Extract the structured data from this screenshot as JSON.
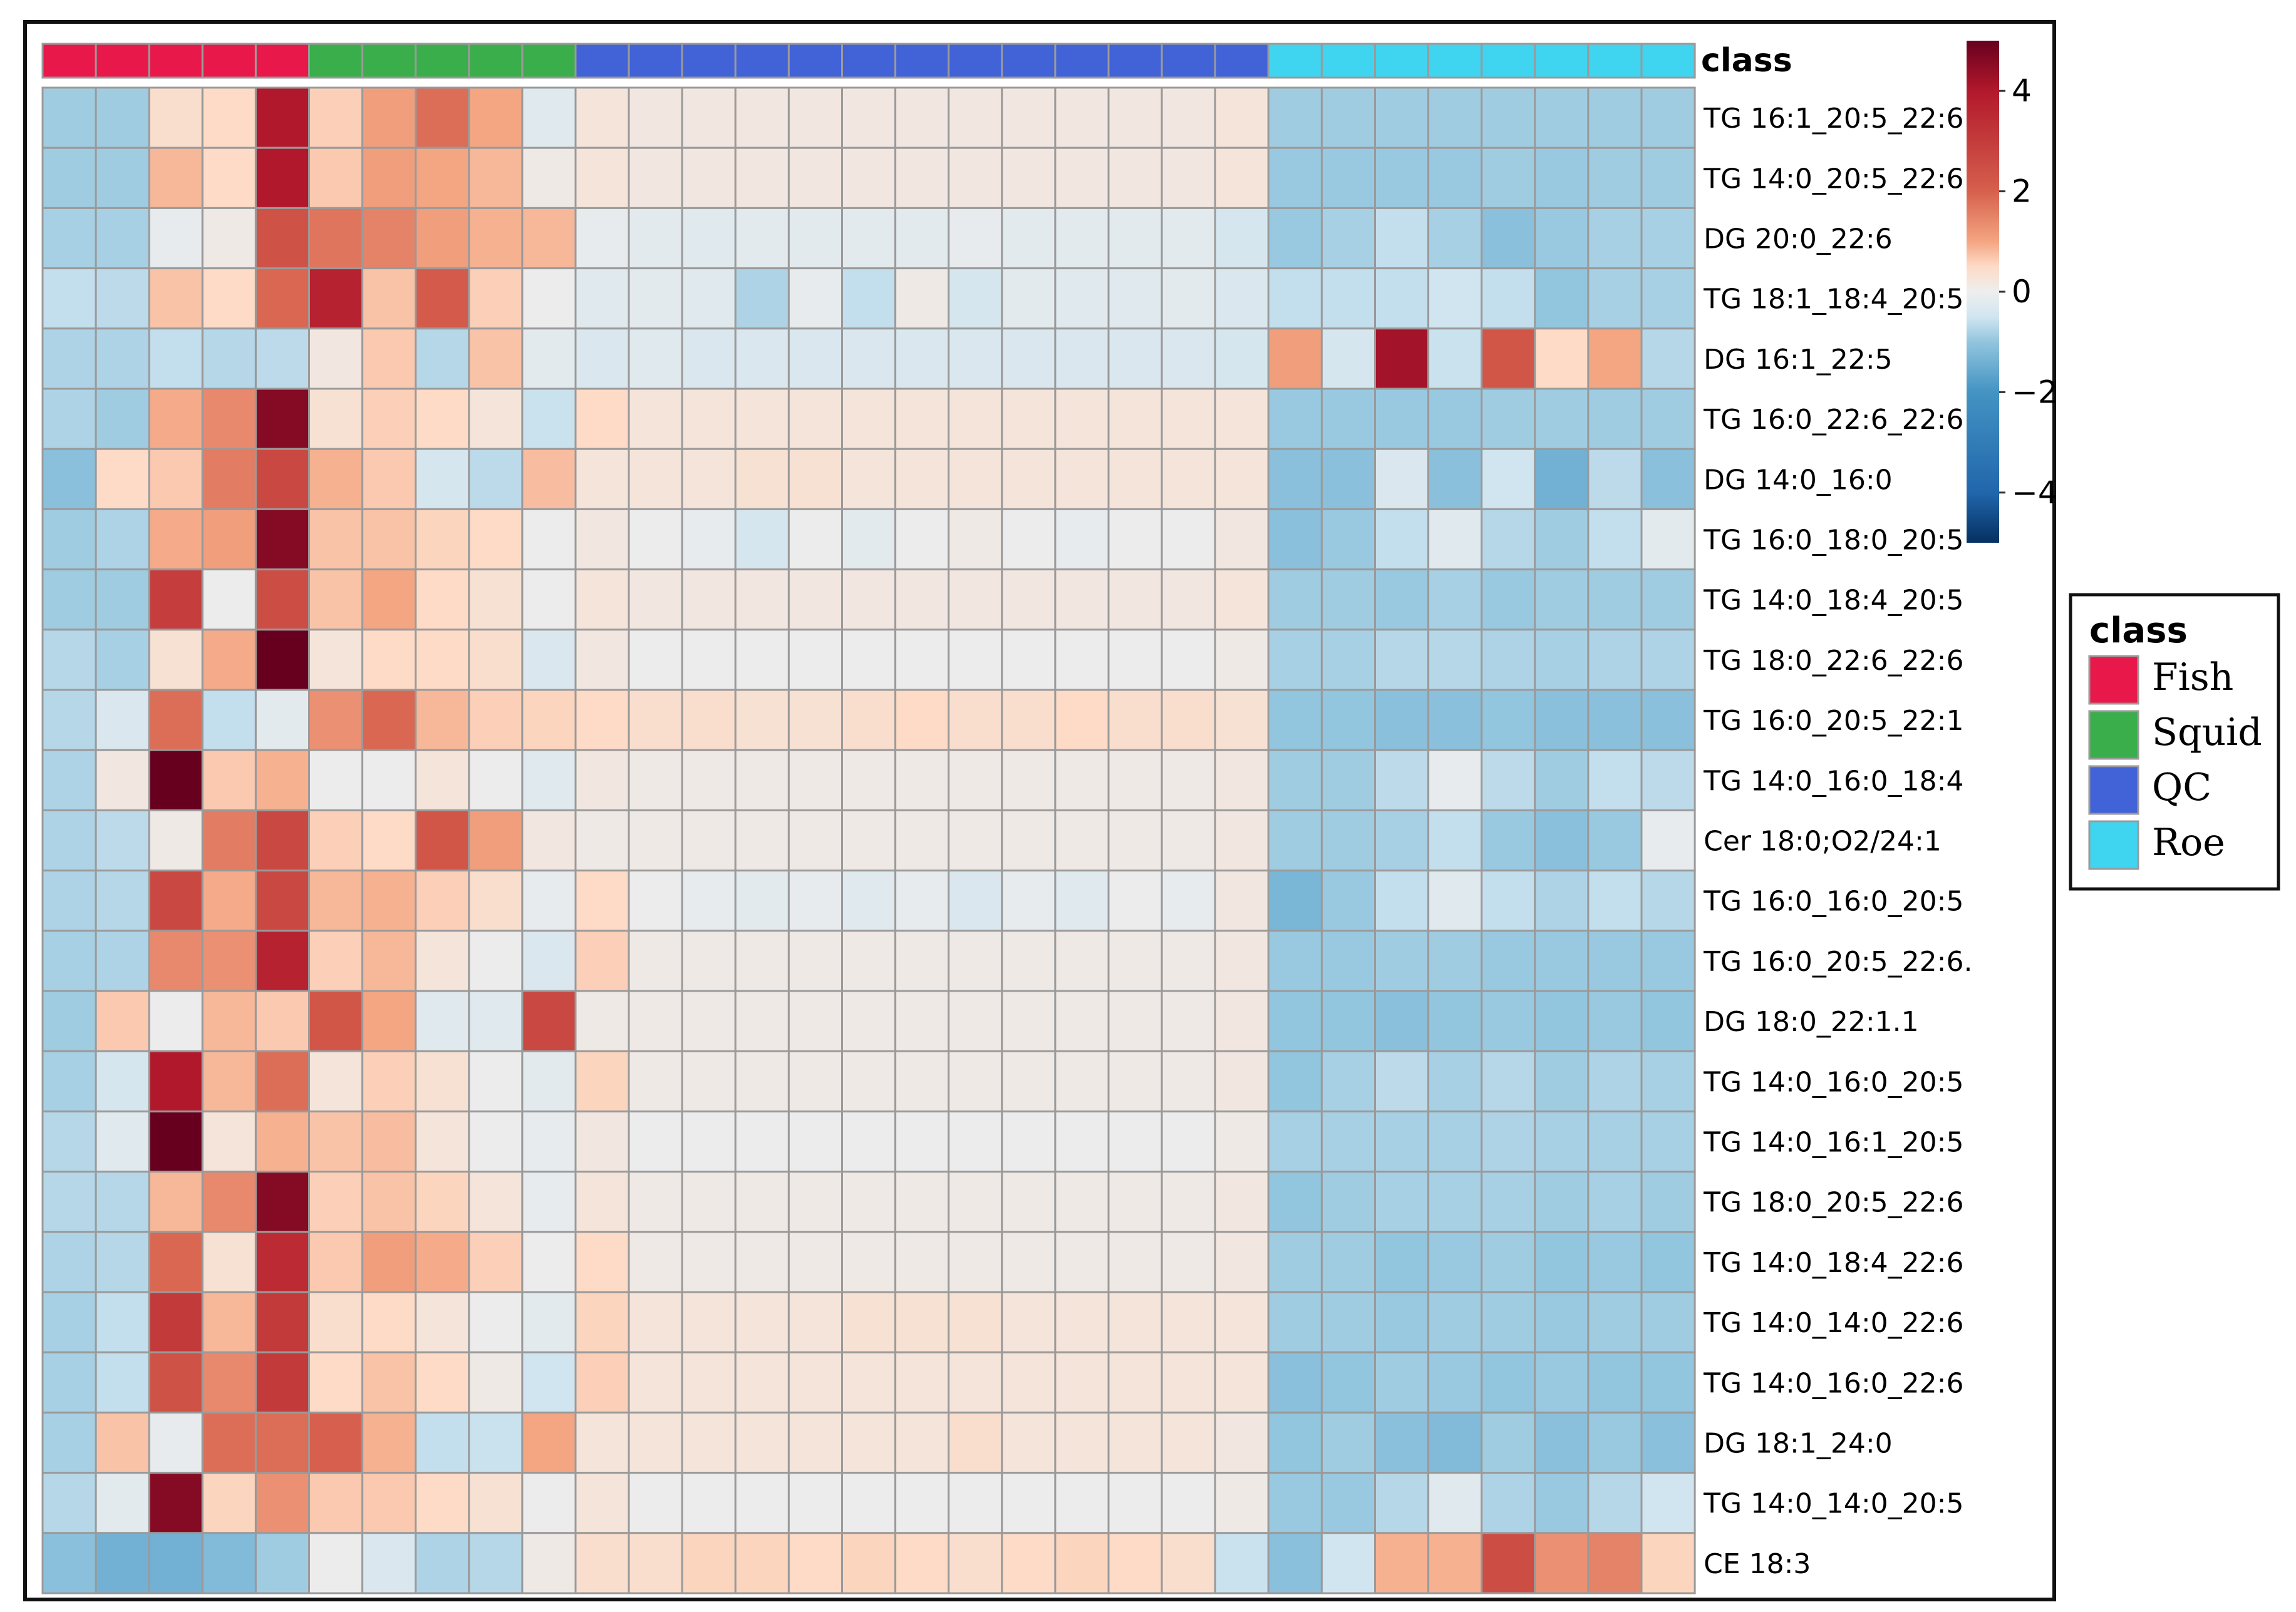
{
  "chart_data": {
    "type": "heatmap",
    "annotation_title": "class",
    "legend_title": "class",
    "classes": [
      {
        "name": "Fish",
        "color": "#e8184a"
      },
      {
        "name": "Squid",
        "color": "#3aae4a"
      },
      {
        "name": "QC",
        "color": "#4262d8"
      },
      {
        "name": "Roe",
        "color": "#3fd4ef"
      }
    ],
    "column_classes": [
      "Fish",
      "Fish",
      "Fish",
      "Fish",
      "Fish",
      "Squid",
      "Squid",
      "Squid",
      "Squid",
      "Squid",
      "QC",
      "QC",
      "QC",
      "QC",
      "QC",
      "QC",
      "QC",
      "QC",
      "QC",
      "QC",
      "QC",
      "QC",
      "QC",
      "Roe",
      "Roe",
      "Roe",
      "Roe",
      "Roe",
      "Roe",
      "Roe",
      "Roe"
    ],
    "colorbar": {
      "min": -5,
      "max": 5,
      "ticks": [
        4,
        2,
        0,
        -2,
        -4
      ],
      "tick_labels": [
        "4",
        "2",
        "0",
        "−2",
        "−4"
      ]
    },
    "rows": [
      "TG 16:1_20:5_22:6.",
      "TG 14:0_20:5_22:6",
      "DG 20:0_22:6",
      "TG 18:1_18:4_20:5",
      "DG 16:1_22:5",
      "TG 16:0_22:6_22:6",
      "DG 14:0_16:0",
      "TG 16:0_18:0_20:5",
      "TG 14:0_18:4_20:5",
      "TG 18:0_22:6_22:6",
      "TG 16:0_20:5_22:1",
      "TG 14:0_16:0_18:4",
      "Cer 18:0;O2/24:1",
      "TG 16:0_16:0_20:5",
      "TG 16:0_20:5_22:6.",
      "DG 18:0_22:1.1",
      "TG 14:0_16:0_20:5",
      "TG 14:0_16:1_20:5",
      "TG 18:0_20:5_22:6",
      "TG 14:0_18:4_22:6",
      "TG 14:0_14:0_22:6",
      "TG 14:0_16:0_22:6",
      "DG 18:1_24:0",
      "TG 14:0_14:0_20:5",
      "CE 18:3"
    ],
    "values": [
      [
        -1.3,
        -1.3,
        0.5,
        0.6,
        4.0,
        0.8,
        1.6,
        2.3,
        1.5,
        -0.3,
        0.3,
        0.2,
        0.2,
        0.2,
        0.2,
        0.2,
        0.2,
        0.2,
        0.2,
        0.2,
        0.2,
        0.2,
        0.3,
        -1.3,
        -1.3,
        -1.3,
        -1.3,
        -1.3,
        -1.3,
        -1.3,
        -1.3
      ],
      [
        -1.3,
        -1.3,
        1.2,
        0.6,
        4.0,
        0.9,
        1.6,
        1.5,
        1.2,
        0.1,
        0.3,
        0.2,
        0.2,
        0.2,
        0.2,
        0.2,
        0.2,
        0.2,
        0.2,
        0.2,
        0.2,
        0.2,
        0.3,
        -1.4,
        -1.4,
        -1.4,
        -1.4,
        -1.3,
        -1.4,
        -1.3,
        -1.3
      ],
      [
        -1.2,
        -1.2,
        -0.1,
        0.1,
        2.8,
        2.2,
        2.0,
        1.6,
        1.3,
        1.2,
        -0.1,
        -0.2,
        -0.3,
        -0.2,
        -0.2,
        -0.2,
        -0.2,
        -0.1,
        -0.2,
        -0.2,
        -0.2,
        -0.2,
        -0.5,
        -1.4,
        -1.2,
        -0.8,
        -1.2,
        -1.6,
        -1.4,
        -1.2,
        -1.2
      ],
      [
        -0.8,
        -0.9,
        1.0,
        0.6,
        2.4,
        3.8,
        1.0,
        2.6,
        0.8,
        0.0,
        -0.3,
        -0.2,
        -0.3,
        -1.1,
        -0.1,
        -0.8,
        0.1,
        -0.5,
        -0.2,
        -0.3,
        -0.3,
        -0.2,
        -0.4,
        -0.8,
        -0.8,
        -0.8,
        -0.6,
        -0.8,
        -1.5,
        -1.2,
        -1.2
      ],
      [
        -1.1,
        -1.1,
        -0.8,
        -1.0,
        -0.9,
        0.2,
        0.9,
        -1.0,
        1.0,
        -0.2,
        -0.4,
        -0.3,
        -0.4,
        -0.4,
        -0.4,
        -0.4,
        -0.4,
        -0.4,
        -0.4,
        -0.4,
        -0.4,
        -0.4,
        -0.5,
        1.6,
        -0.5,
        4.2,
        -0.7,
        2.7,
        0.6,
        1.5,
        -1.0
      ],
      [
        -1.1,
        -1.3,
        1.4,
        1.9,
        4.6,
        0.4,
        0.8,
        0.6,
        0.3,
        -0.7,
        0.6,
        0.3,
        0.3,
        0.3,
        0.3,
        0.3,
        0.3,
        0.3,
        0.3,
        0.3,
        0.3,
        0.3,
        0.3,
        -1.4,
        -1.4,
        -1.4,
        -1.4,
        -1.3,
        -1.3,
        -1.3,
        -1.3
      ],
      [
        -1.6,
        0.6,
        0.9,
        2.1,
        3.0,
        1.3,
        0.9,
        -0.5,
        -0.9,
        1.1,
        0.3,
        0.3,
        0.3,
        0.4,
        0.4,
        0.3,
        0.3,
        0.3,
        0.3,
        0.3,
        0.3,
        0.3,
        0.3,
        -1.6,
        -1.6,
        -0.4,
        -1.6,
        -0.6,
        -1.9,
        -0.9,
        -1.6
      ],
      [
        -1.3,
        -1.1,
        1.4,
        1.6,
        4.6,
        1.0,
        1.0,
        0.7,
        0.6,
        0.0,
        0.2,
        0.0,
        -0.1,
        -0.5,
        0.0,
        -0.2,
        0.0,
        0.1,
        0.0,
        -0.1,
        0.0,
        0.0,
        0.2,
        -1.6,
        -1.4,
        -0.8,
        -0.3,
        -1.0,
        -1.3,
        -0.8,
        -0.2
      ],
      [
        -1.3,
        -1.3,
        3.2,
        0.0,
        2.9,
        1.0,
        1.5,
        0.6,
        0.4,
        0.0,
        0.3,
        0.2,
        0.2,
        0.2,
        0.2,
        0.2,
        0.2,
        0.2,
        0.2,
        0.2,
        0.2,
        0.2,
        0.3,
        -1.3,
        -1.3,
        -1.4,
        -1.2,
        -1.4,
        -1.3,
        -1.3,
        -1.3
      ],
      [
        -1.0,
        -1.2,
        0.4,
        1.4,
        5.0,
        0.3,
        0.6,
        0.6,
        0.5,
        -0.4,
        0.2,
        0.0,
        0.0,
        0.0,
        0.0,
        0.0,
        0.0,
        0.0,
        0.0,
        0.0,
        0.0,
        0.0,
        0.1,
        -1.2,
        -1.2,
        -1.0,
        -1.0,
        -1.1,
        -1.2,
        -1.1,
        -1.1
      ],
      [
        -1.0,
        -0.4,
        2.3,
        -0.8,
        -0.2,
        1.8,
        2.4,
        1.2,
        0.8,
        0.7,
        0.6,
        0.5,
        0.5,
        0.4,
        0.4,
        0.5,
        0.6,
        0.5,
        0.5,
        0.6,
        0.5,
        0.5,
        0.4,
        -1.5,
        -1.5,
        -1.6,
        -1.6,
        -1.5,
        -1.6,
        -1.6,
        -1.6
      ],
      [
        -1.1,
        0.2,
        5.0,
        0.9,
        1.3,
        0.0,
        0.0,
        0.3,
        0.0,
        -0.3,
        0.2,
        0.1,
        0.1,
        0.1,
        0.1,
        0.1,
        0.1,
        0.1,
        0.1,
        0.1,
        0.1,
        0.1,
        0.2,
        -1.3,
        -1.3,
        -0.9,
        -0.1,
        -0.9,
        -1.3,
        -0.8,
        -0.9
      ],
      [
        -1.1,
        -0.9,
        0.1,
        2.1,
        3.0,
        0.8,
        0.6,
        2.7,
        1.6,
        0.2,
        0.1,
        0.1,
        0.1,
        0.1,
        0.1,
        0.1,
        0.1,
        0.1,
        0.1,
        0.1,
        0.1,
        0.1,
        0.2,
        -1.3,
        -1.3,
        -1.2,
        -0.8,
        -1.4,
        -1.6,
        -1.4,
        -0.1
      ],
      [
        -1.1,
        -1.0,
        3.0,
        1.4,
        3.0,
        1.2,
        1.3,
        0.8,
        0.5,
        -0.1,
        0.6,
        0.0,
        -0.1,
        -0.2,
        -0.1,
        -0.3,
        -0.1,
        -0.4,
        -0.1,
        -0.3,
        0.0,
        -0.1,
        0.2,
        -1.8,
        -1.4,
        -0.8,
        -0.3,
        -0.8,
        -1.1,
        -0.8,
        -1.0
      ],
      [
        -1.2,
        -1.1,
        1.9,
        1.8,
        3.8,
        0.8,
        1.2,
        0.3,
        0.0,
        -0.4,
        0.8,
        0.1,
        0.1,
        0.1,
        0.1,
        0.1,
        0.1,
        0.1,
        0.1,
        0.1,
        0.1,
        0.1,
        0.2,
        -1.4,
        -1.4,
        -1.3,
        -1.3,
        -1.4,
        -1.4,
        -1.4,
        -1.4
      ],
      [
        -1.3,
        0.9,
        0.0,
        1.2,
        0.9,
        2.7,
        1.5,
        -0.3,
        -0.3,
        3.0,
        0.1,
        0.1,
        0.1,
        0.1,
        0.1,
        0.1,
        0.1,
        0.1,
        0.1,
        0.1,
        0.1,
        0.1,
        0.2,
        -1.5,
        -1.5,
        -1.6,
        -1.5,
        -1.4,
        -1.5,
        -1.4,
        -1.5
      ],
      [
        -1.2,
        -0.5,
        4.0,
        1.2,
        2.3,
        0.3,
        0.8,
        0.4,
        0.0,
        -0.2,
        0.7,
        0.1,
        0.1,
        0.1,
        0.1,
        0.1,
        0.1,
        0.1,
        0.1,
        0.1,
        0.1,
        0.1,
        0.2,
        -1.5,
        -1.2,
        -0.9,
        -1.2,
        -1.0,
        -1.3,
        -1.1,
        -1.2
      ],
      [
        -1.0,
        -0.3,
        5.0,
        0.3,
        1.3,
        1.0,
        1.1,
        0.3,
        0.0,
        -0.1,
        0.2,
        0.0,
        0.0,
        0.0,
        0.0,
        0.0,
        0.0,
        0.0,
        0.0,
        0.0,
        0.0,
        0.0,
        0.1,
        -1.2,
        -1.2,
        -1.2,
        -1.2,
        -1.1,
        -1.2,
        -1.2,
        -1.2
      ],
      [
        -1.0,
        -1.0,
        1.2,
        1.9,
        4.6,
        0.8,
        1.0,
        0.7,
        0.3,
        -0.1,
        0.3,
        0.1,
        0.1,
        0.1,
        0.1,
        0.1,
        0.1,
        0.1,
        0.1,
        0.1,
        0.1,
        0.1,
        0.2,
        -1.5,
        -1.3,
        -1.2,
        -1.2,
        -1.2,
        -1.3,
        -1.2,
        -1.3
      ],
      [
        -1.1,
        -1.0,
        2.4,
        0.4,
        3.6,
        0.9,
        1.6,
        1.4,
        0.8,
        0.0,
        0.6,
        0.1,
        0.1,
        0.1,
        0.1,
        0.1,
        0.1,
        0.1,
        0.1,
        0.1,
        0.1,
        0.1,
        0.2,
        -1.3,
        -1.3,
        -1.5,
        -1.4,
        -1.3,
        -1.5,
        -1.4,
        -1.5
      ],
      [
        -1.2,
        -0.8,
        3.3,
        1.2,
        3.3,
        0.5,
        0.6,
        0.3,
        0.0,
        -0.2,
        0.7,
        0.3,
        0.3,
        0.3,
        0.3,
        0.4,
        0.4,
        0.4,
        0.3,
        0.3,
        0.3,
        0.3,
        0.3,
        -1.3,
        -1.3,
        -1.4,
        -1.3,
        -1.3,
        -1.4,
        -1.3,
        -1.3
      ],
      [
        -1.2,
        -0.8,
        2.8,
        1.9,
        3.3,
        0.6,
        1.0,
        0.6,
        0.1,
        -0.6,
        0.8,
        0.3,
        0.3,
        0.3,
        0.3,
        0.3,
        0.3,
        0.3,
        0.3,
        0.3,
        0.3,
        0.3,
        0.3,
        -1.6,
        -1.5,
        -1.3,
        -1.4,
        -1.5,
        -1.4,
        -1.5,
        -1.5
      ],
      [
        -1.2,
        1.0,
        -0.1,
        2.3,
        2.3,
        2.5,
        1.3,
        -0.8,
        -0.7,
        1.5,
        0.3,
        0.3,
        0.3,
        0.3,
        0.3,
        0.3,
        0.3,
        0.5,
        0.3,
        0.3,
        0.3,
        0.3,
        0.2,
        -1.5,
        -1.3,
        -1.6,
        -1.7,
        -1.3,
        -1.6,
        -1.4,
        -1.6
      ],
      [
        -1.0,
        -0.2,
        4.6,
        0.7,
        1.8,
        0.9,
        0.9,
        0.6,
        0.4,
        0.0,
        0.3,
        0.0,
        0.0,
        0.0,
        0.0,
        0.0,
        0.0,
        0.0,
        0.0,
        0.0,
        0.0,
        0.0,
        0.1,
        -1.4,
        -1.4,
        -1.0,
        -0.3,
        -1.1,
        -1.4,
        -1.0,
        -0.6
      ],
      [
        -1.6,
        -1.9,
        -1.9,
        -1.7,
        -1.3,
        0.0,
        -0.4,
        -1.1,
        -1.0,
        0.1,
        0.5,
        0.5,
        0.7,
        0.7,
        0.6,
        0.7,
        0.6,
        0.5,
        0.6,
        0.7,
        0.6,
        0.5,
        -0.7,
        -1.6,
        -0.6,
        1.3,
        1.3,
        2.9,
        1.8,
        2.0,
        0.7
      ]
    ]
  }
}
